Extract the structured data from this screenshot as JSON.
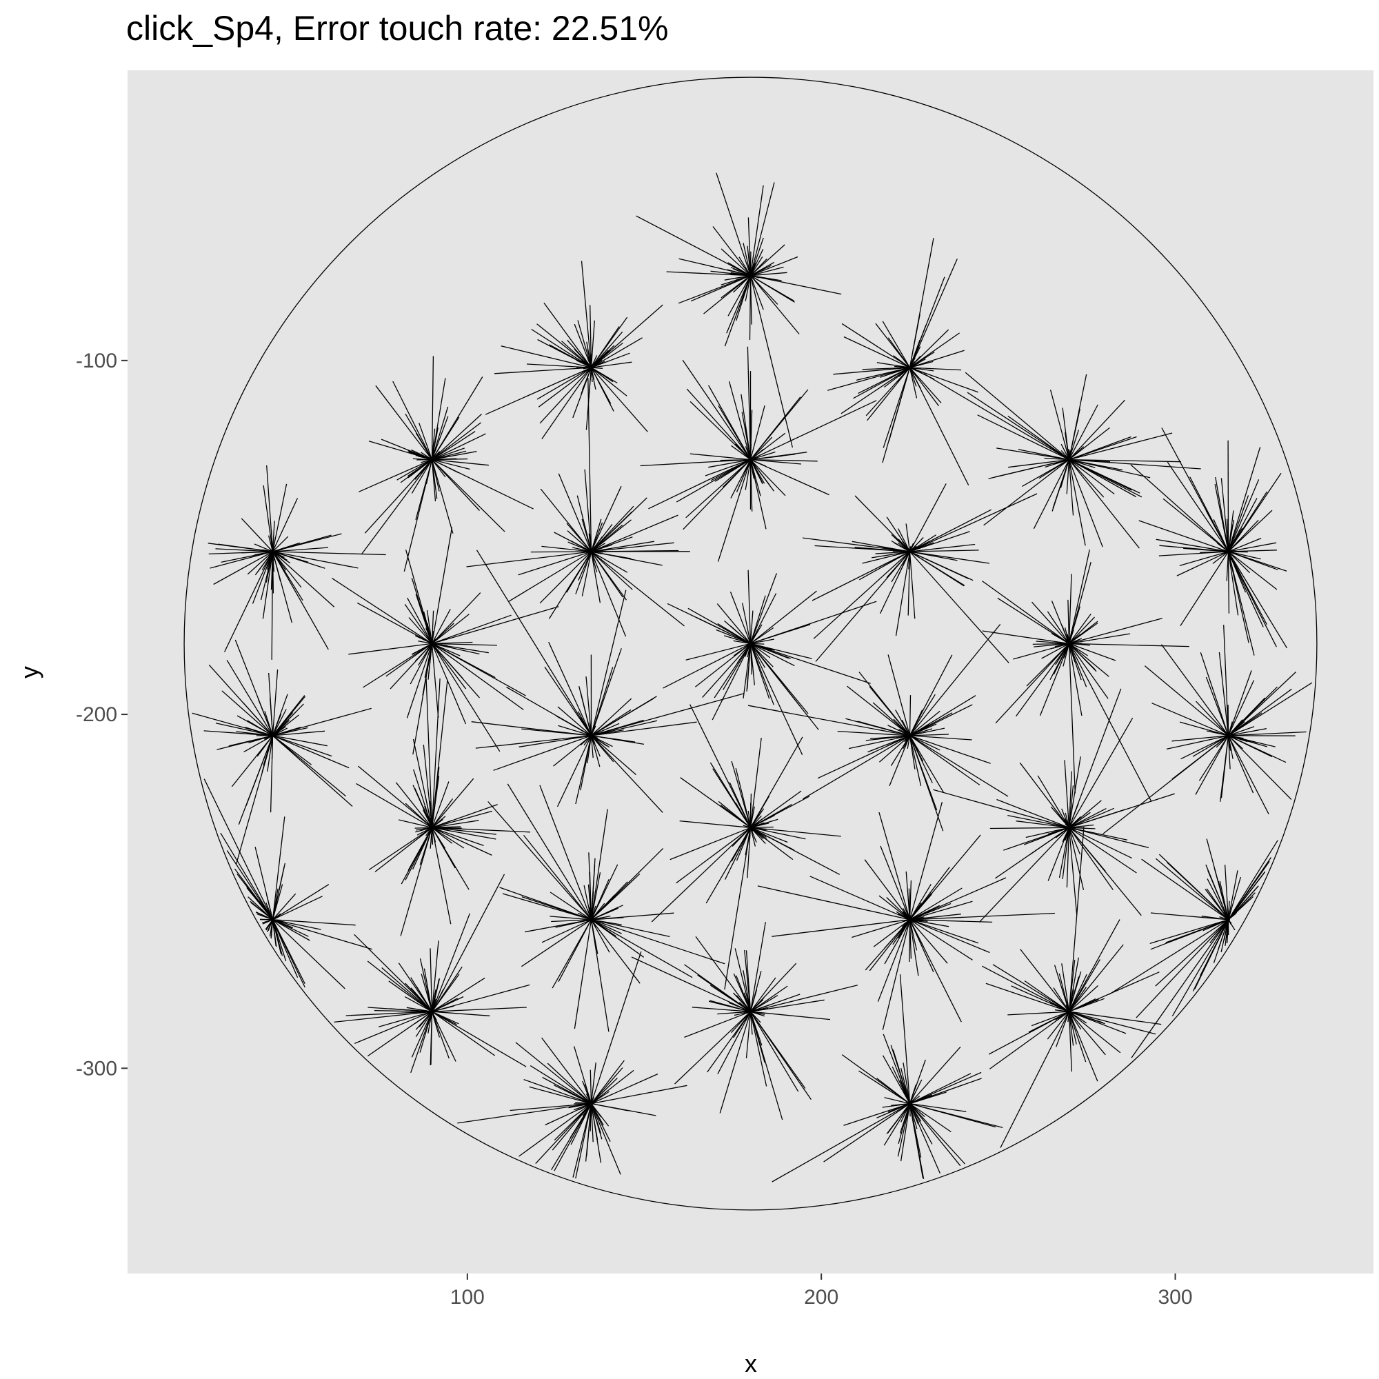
{
  "chart_data": {
    "type": "scatter",
    "title": "click_Sp4, Error touch rate: 22.51%",
    "xlabel": "x",
    "ylabel": "y",
    "xlim": [
      4,
      356
    ],
    "ylim": [
      -358,
      -18
    ],
    "x_ticks": [
      100,
      200,
      300
    ],
    "y_ticks": [
      -100,
      -200,
      -300
    ],
    "x_tick_labels": [
      "100",
      "200",
      "300"
    ],
    "y_tick_labels": [
      "-100",
      "-200",
      "-300"
    ],
    "boundary_circle": {
      "center": [
        180,
        -180
      ],
      "radius": 160
    },
    "targets": [
      [
        180,
        -76
      ],
      [
        135,
        -102
      ],
      [
        225,
        -102
      ],
      [
        90,
        -128
      ],
      [
        180,
        -128
      ],
      [
        270,
        -128
      ],
      [
        45,
        -154
      ],
      [
        135,
        -154
      ],
      [
        225,
        -154
      ],
      [
        315,
        -154
      ],
      [
        90,
        -180
      ],
      [
        180,
        -180
      ],
      [
        270,
        -180
      ],
      [
        45,
        -206
      ],
      [
        135,
        -206
      ],
      [
        225,
        -206
      ],
      [
        315,
        -206
      ],
      [
        90,
        -232
      ],
      [
        180,
        -232
      ],
      [
        270,
        -232
      ],
      [
        45,
        -258
      ],
      [
        135,
        -258
      ],
      [
        225,
        -258
      ],
      [
        315,
        -258
      ],
      [
        90,
        -284
      ],
      [
        180,
        -284
      ],
      [
        270,
        -284
      ],
      [
        135,
        -310
      ],
      [
        225,
        -310
      ]
    ],
    "touches_per_target_approx": 60,
    "touch_offset_typical_radius": 25,
    "grid": false,
    "legend": "none",
    "colors": {
      "panel": "#e5e5e5",
      "line": "#000000",
      "tick": "#4d4d4d"
    }
  }
}
